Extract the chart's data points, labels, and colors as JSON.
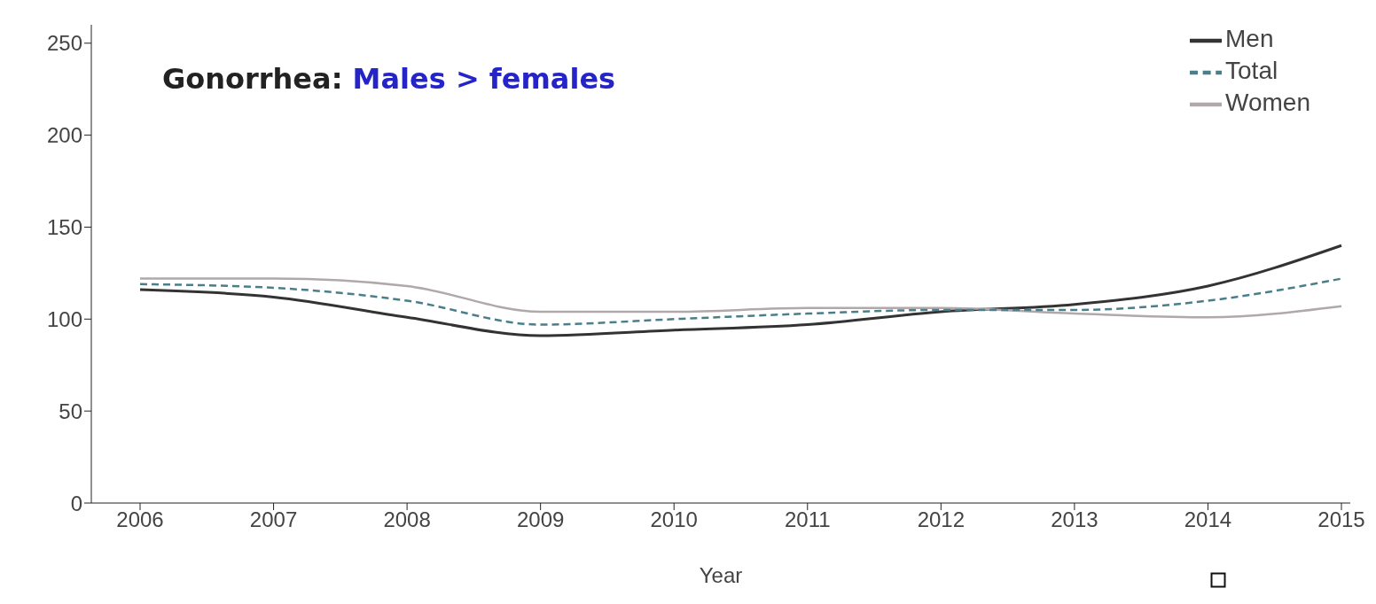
{
  "chart_data": {
    "type": "line",
    "title": "Gonorrhea: Males > females",
    "xlabel": "Year",
    "categories": [
      "2006",
      "2007",
      "2008",
      "2009",
      "2010",
      "2011",
      "2012",
      "2013",
      "2014",
      "2015"
    ],
    "series": [
      {
        "name": "Men",
        "color": "#333333",
        "values": [
          116,
          112,
          101,
          91,
          94,
          97,
          104,
          108,
          118,
          140
        ]
      },
      {
        "name": "Women",
        "color": "#b0a8ab",
        "values": [
          122,
          122,
          118,
          104,
          104,
          106,
          106,
          103,
          101,
          107
        ]
      },
      {
        "name": "Total",
        "color": "#4a7f8a",
        "line_style": "dashed",
        "values": [
          119,
          117,
          110,
          97,
          100,
          103,
          105,
          105,
          110,
          122
        ]
      }
    ],
    "ylim": [
      0,
      260
    ],
    "yticks": [
      0,
      50,
      100,
      150,
      200,
      250
    ],
    "grid": false,
    "legend": "top right",
    "marker": "none"
  }
}
